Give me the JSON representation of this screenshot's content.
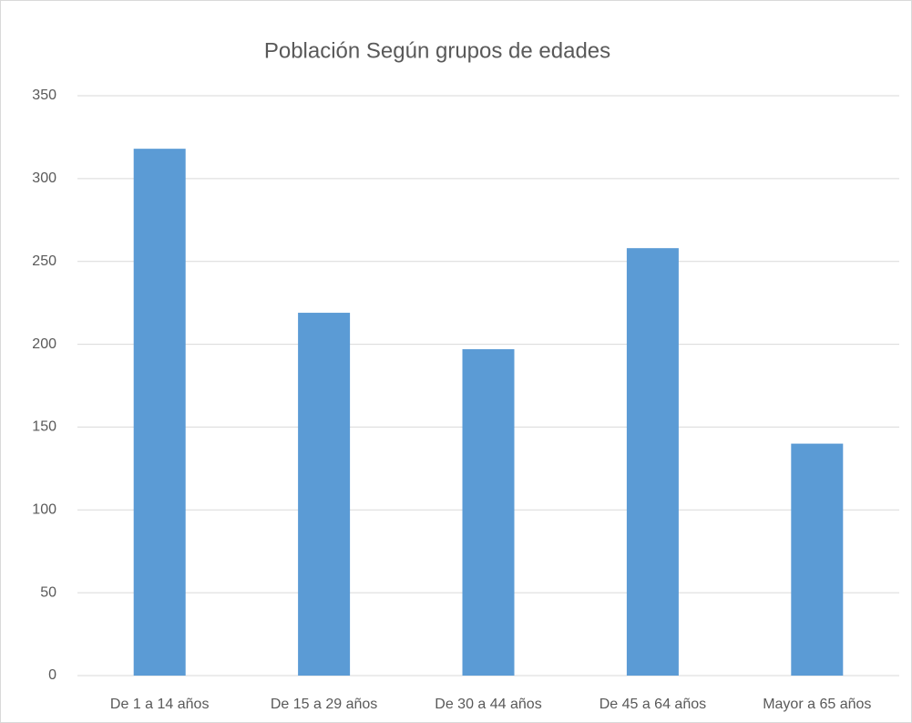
{
  "chart_data": {
    "type": "bar",
    "title": "Población Según grupos de edades",
    "categories": [
      "De 1 a 14 años",
      "De 15 a 29 años",
      "De 30 a 44 años",
      "De 45 a 64 años",
      "Mayor a 65 años"
    ],
    "values": [
      318,
      219,
      197,
      258,
      140
    ],
    "color": "#5b9bd5",
    "ylim": [
      0,
      350
    ],
    "yticks": [
      0,
      50,
      100,
      150,
      200,
      250,
      300,
      350
    ],
    "grid": true
  }
}
